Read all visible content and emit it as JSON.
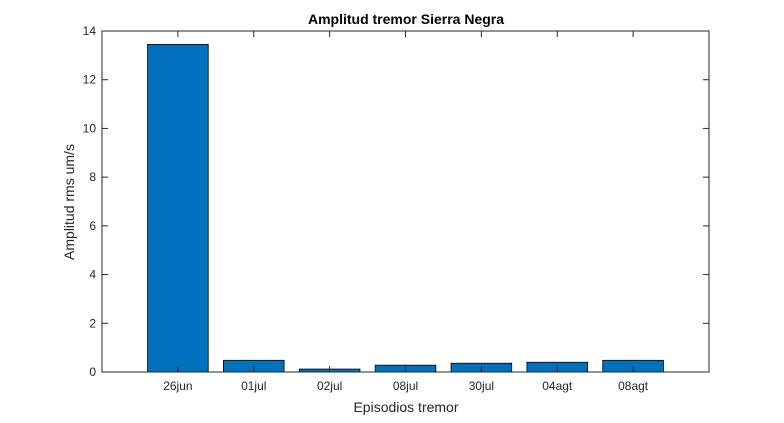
{
  "chart_data": {
    "type": "bar",
    "title": "Amplitud tremor Sierra Negra",
    "xlabel": "Episodios tremor",
    "ylabel": "Amplitud rms um/s",
    "categories": [
      "26jun",
      "01jul",
      "02jul",
      "08jul",
      "30jul",
      "04agt",
      "08agt"
    ],
    "values": [
      13.45,
      0.48,
      0.12,
      0.28,
      0.36,
      0.4,
      0.48
    ],
    "ylim": [
      0,
      14
    ],
    "yticks": [
      0,
      2,
      4,
      6,
      8,
      10,
      12,
      14
    ],
    "grid": false,
    "bar_color": "#0072BD",
    "bar_edge_color": "#000000"
  }
}
